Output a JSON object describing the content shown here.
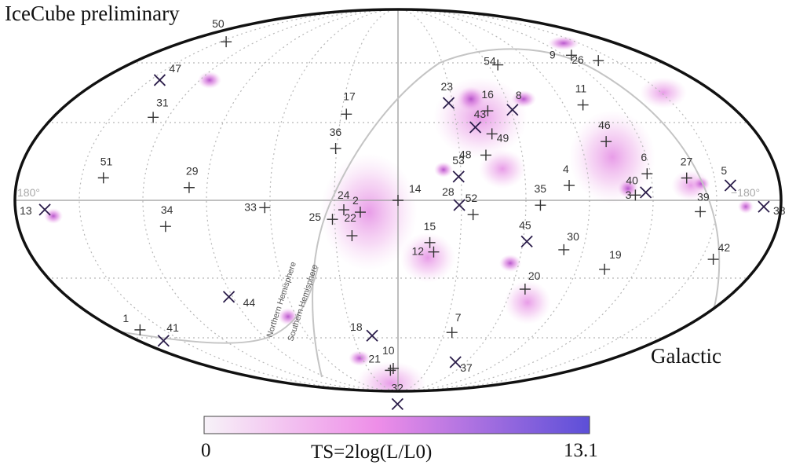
{
  "title": "IceCube preliminary",
  "frame_label": "Galactic",
  "axis_labels": {
    "left": "180°",
    "right": "−180°"
  },
  "hemisphere_labels": [
    "Northern Hemisphere",
    "Southern Hemisphere"
  ],
  "colorbar": {
    "min_label": "0",
    "max_label": "13.1",
    "title": "TS=2log(L/L0)",
    "colors": [
      "#f7f2f8",
      "#ee8ee8",
      "#5c4fd8"
    ]
  },
  "events": [
    {
      "id": "1",
      "marker": "+",
      "lon": 166,
      "lat": -45
    },
    {
      "id": "2",
      "marker": "+",
      "lon": 16,
      "lat": -5
    },
    {
      "id": "3",
      "marker": "x",
      "lon": -109,
      "lat": 3
    },
    {
      "id": "4",
      "marker": "+",
      "lon": -74,
      "lat": 6
    },
    {
      "id": "5",
      "marker": "x",
      "lon": -152,
      "lat": 5
    },
    {
      "id": "6",
      "marker": "+",
      "lon": -111,
      "lat": 10
    },
    {
      "id": "7",
      "marker": "+",
      "lon": -38,
      "lat": -58
    },
    {
      "id": "8",
      "marker": "x",
      "lon": -59,
      "lat": 38
    },
    {
      "id": "9",
      "marker": "+",
      "lon": -133,
      "lat": 57
    },
    {
      "id": "10",
      "marker": "+",
      "lon": 7,
      "lat": -77
    },
    {
      "id": "11",
      "marker": "+",
      "lon": -98,
      "lat": 38
    },
    {
      "id": "12",
      "marker": "+",
      "lon": -16,
      "lat": -22
    },
    {
      "id": "13",
      "marker": "x",
      "lon": 163,
      "lat": -3
    },
    {
      "id": "14",
      "marker": "+",
      "lon": 0,
      "lat": 0
    },
    {
      "id": "15",
      "marker": "+",
      "lon": -14,
      "lat": -18
    },
    {
      "id": "16",
      "marker": "+",
      "lon": -46,
      "lat": 38
    },
    {
      "id": "17",
      "marker": "+",
      "lon": 26,
      "lat": 37
    },
    {
      "id": "18",
      "marker": "x",
      "lon": 19,
      "lat": -60
    },
    {
      "id": "19",
      "marker": "+",
      "lon": -99,
      "lat": -27
    },
    {
      "id": "20",
      "marker": "+",
      "lon": -65,
      "lat": -37
    },
    {
      "id": "21",
      "marker": "+",
      "lon": 12,
      "lat": -78
    },
    {
      "id": "22",
      "marker": "+",
      "lon": 20,
      "lat": -15
    },
    {
      "id": "23",
      "marker": "x",
      "lon": -27,
      "lat": 42
    },
    {
      "id": "24",
      "marker": "+",
      "lon": 23,
      "lat": -4
    },
    {
      "id": "25",
      "marker": "+",
      "lon": 28,
      "lat": -8
    },
    {
      "id": "26",
      "marker": "+",
      "lon": -143,
      "lat": 53
    },
    {
      "id": "27",
      "marker": "+",
      "lon": -130,
      "lat": 8
    },
    {
      "id": "28",
      "marker": "x",
      "lon": -26,
      "lat": -2
    },
    {
      "id": "29",
      "marker": "+",
      "lon": 91,
      "lat": 5
    },
    {
      "id": "30",
      "marker": "+",
      "lon": -75,
      "lat": -20
    },
    {
      "id": "31",
      "marker": "+",
      "lon": 124,
      "lat": 31
    },
    {
      "id": "32",
      "marker": "x",
      "lon": -1,
      "lat": -98
    },
    {
      "id": "33",
      "marker": "+",
      "lon": 57,
      "lat": -3
    },
    {
      "id": "34",
      "marker": "+",
      "lon": 103,
      "lat": -10
    },
    {
      "id": "35",
      "marker": "+",
      "lon": -61,
      "lat": -2
    },
    {
      "id": "36",
      "marker": "+",
      "lon": 28,
      "lat": 22
    },
    {
      "id": "37",
      "marker": "x",
      "lon": -66,
      "lat": -72
    },
    {
      "id": "38",
      "marker": "x",
      "lon": -170,
      "lat": -2
    },
    {
      "id": "39",
      "marker": "+",
      "lon": -136,
      "lat": -4
    },
    {
      "id": "40",
      "marker": "+",
      "lon": -104,
      "lat": 2
    },
    {
      "id": "41",
      "marker": "x",
      "lon": 165,
      "lat": -50
    },
    {
      "id": "42",
      "marker": "+",
      "lon": -152,
      "lat": -20
    },
    {
      "id": "43",
      "marker": "x",
      "lon": -37,
      "lat": 31
    },
    {
      "id": "44",
      "marker": "x",
      "lon": 90,
      "lat": -39
    },
    {
      "id": "45",
      "marker": "x",
      "lon": -57,
      "lat": -17
    },
    {
      "id": "46",
      "marker": "+",
      "lon": -97,
      "lat": 23
    },
    {
      "id": "47",
      "marker": "x",
      "lon": 145,
      "lat": 44
    },
    {
      "id": "48",
      "marker": "+",
      "lon": -39,
      "lat": 19
    },
    {
      "id": "49",
      "marker": "+",
      "lon": -44,
      "lat": 28
    },
    {
      "id": "50",
      "marker": "+",
      "lon": 154,
      "lat": 61
    },
    {
      "id": "51",
      "marker": "+",
      "lon": 133,
      "lat": 8
    },
    {
      "id": "52",
      "marker": "+",
      "lon": -32,
      "lat": -6
    },
    {
      "id": "53",
      "marker": "x",
      "lon": -26,
      "lat": 10
    },
    {
      "id": "54",
      "marker": "+",
      "lon": -72,
      "lat": 58
    }
  ]
}
